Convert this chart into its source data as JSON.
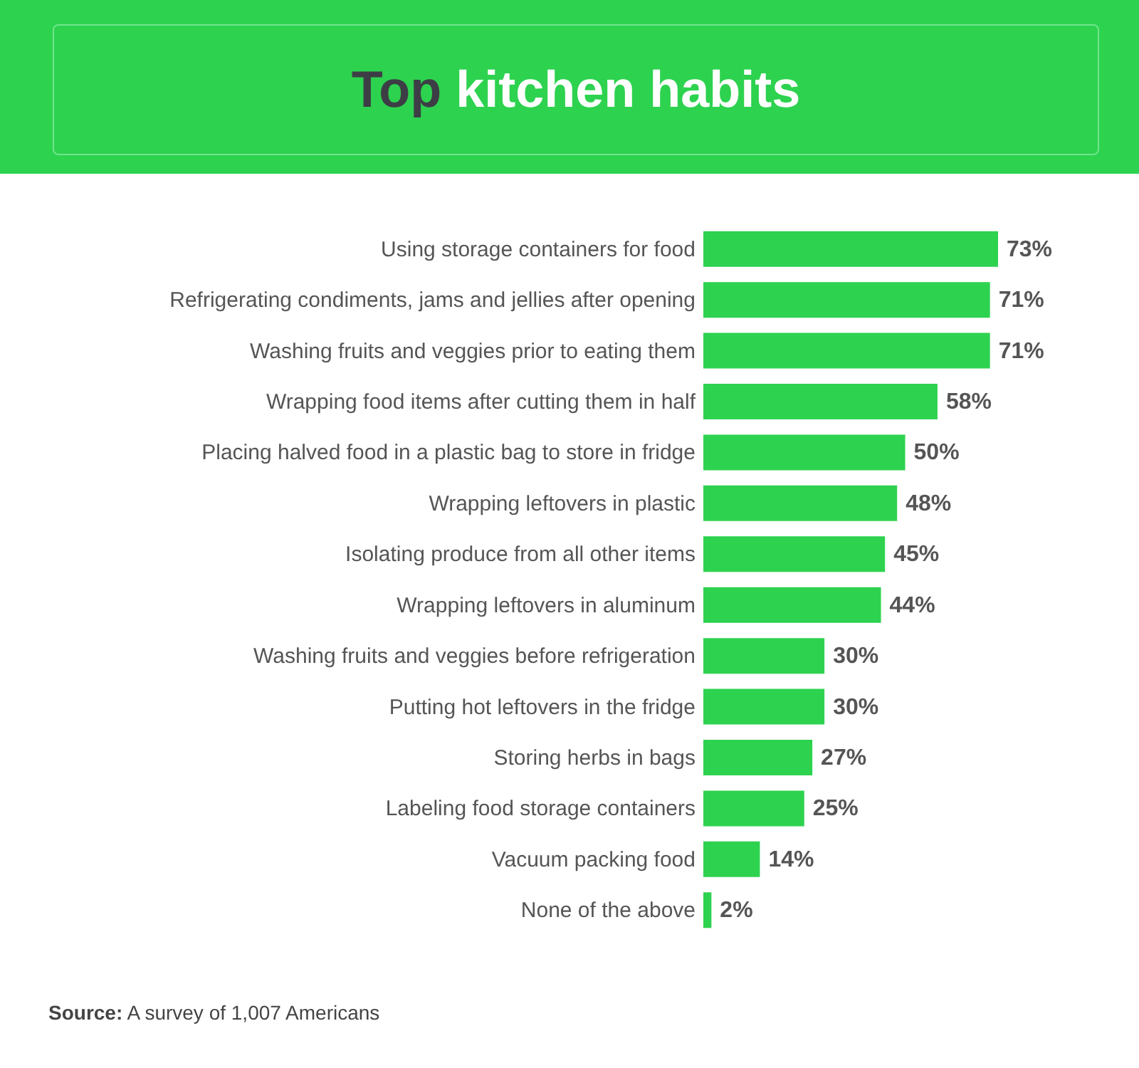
{
  "chart_data": {
    "type": "bar",
    "orientation": "horizontal",
    "title": "Top kitchen habits",
    "categories": [
      "Using storage containers for food",
      "Refrigerating condiments, jams and jellies after opening",
      "Washing fruits and veggies prior to eating them",
      "Wrapping food items after cutting them in half",
      "Placing halved food in a plastic bag to store in fridge",
      "Wrapping leftovers in plastic",
      "Isolating produce from all other items",
      "Wrapping leftovers in aluminum",
      "Washing fruits and veggies before refrigeration",
      "Putting hot leftovers in the fridge",
      "Storing herbs in bags",
      "Labeling food storage containers",
      "Vacuum packing food",
      "None of the above"
    ],
    "values": [
      73,
      71,
      71,
      58,
      50,
      48,
      45,
      44,
      30,
      30,
      27,
      25,
      14,
      2
    ],
    "value_labels": [
      "73%",
      "71%",
      "71%",
      "58%",
      "50%",
      "48%",
      "45%",
      "44%",
      "30%",
      "30%",
      "27%",
      "25%",
      "14%",
      "2%"
    ],
    "color": "#2dd24f",
    "annotations": [
      "Source: A survey of 1,007 Americans"
    ]
  }
}
